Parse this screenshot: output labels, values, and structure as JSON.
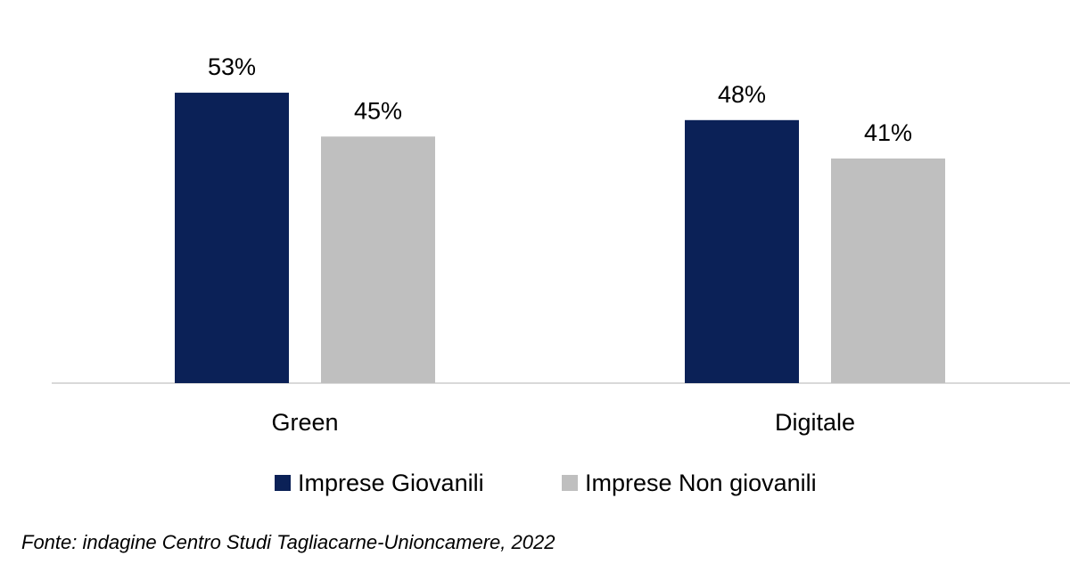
{
  "chart_data": {
    "type": "bar",
    "categories": [
      "Green",
      "Digitale"
    ],
    "series": [
      {
        "name": "Imprese Giovanili",
        "values": [
          53,
          48
        ],
        "labels": [
          "53%",
          "48%"
        ],
        "color": "#0B2157"
      },
      {
        "name": "Imprese Non giovanili",
        "values": [
          45,
          41
        ],
        "labels": [
          "45%",
          "41%"
        ],
        "color": "#BFBFBF"
      }
    ],
    "ylim": [
      0,
      60
    ],
    "grid": false,
    "legend_position": "bottom",
    "axis_color": "#D9D9D9"
  },
  "source_note": "Fonte: indagine Centro Studi Tagliacarne-Unioncamere, 2022"
}
